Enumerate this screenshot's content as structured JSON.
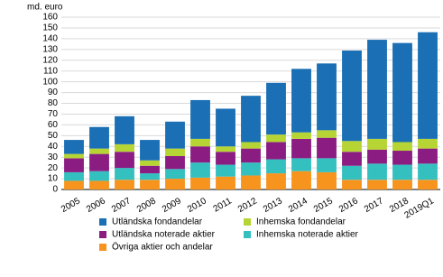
{
  "chart_data": {
    "type": "stacked-bar",
    "y_axis_label": "md. euro",
    "categories": [
      "2005",
      "2006",
      "2007",
      "2008",
      "2009",
      "2010",
      "2011",
      "2012",
      "2013",
      "2014",
      "2015",
      "2016",
      "2017",
      "2018",
      "2019Q1"
    ],
    "series": [
      {
        "name": "Övriga aktier och andelar",
        "color": "#f7941d",
        "values": [
          8,
          8,
          9,
          9,
          10,
          11,
          12,
          13,
          15,
          17,
          16,
          9,
          9,
          9,
          9
        ]
      },
      {
        "name": "Inhemska noterade aktier",
        "color": "#35c0c0",
        "values": [
          8,
          9,
          11,
          6,
          9,
          14,
          11,
          12,
          13,
          12,
          13,
          13,
          15,
          14,
          15
        ]
      },
      {
        "name": "Utländska noterade aktier",
        "color": "#8b1d82",
        "values": [
          13,
          16,
          15,
          7,
          12,
          15,
          12,
          13,
          16,
          18,
          19,
          13,
          13,
          13,
          14
        ]
      },
      {
        "name": "Inhemska fondandelar",
        "color": "#b6d534",
        "values": [
          4,
          5,
          7,
          5,
          7,
          7,
          5,
          6,
          7,
          6,
          7,
          10,
          10,
          8,
          9
        ]
      },
      {
        "name": "Utländska fondandelar",
        "color": "#1a6fb5",
        "values": [
          13,
          20,
          26,
          19,
          25,
          36,
          35,
          43,
          48,
          59,
          62,
          84,
          92,
          92,
          99
        ]
      }
    ],
    "ylim": [
      0,
      160
    ],
    "yticks": [
      0,
      10,
      20,
      30,
      40,
      50,
      60,
      70,
      80,
      90,
      100,
      110,
      120,
      130,
      140,
      150,
      160
    ],
    "grid": true
  }
}
